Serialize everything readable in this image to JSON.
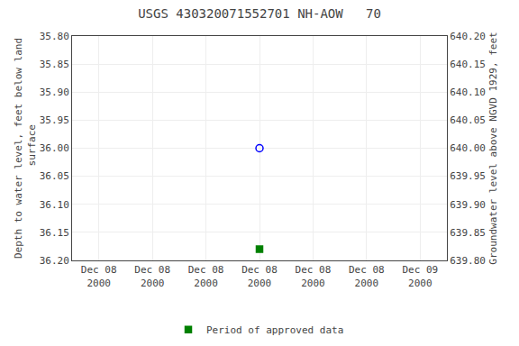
{
  "chart_data": {
    "type": "scatter",
    "title": "USGS 430320071552701 NH-AOW   70",
    "ylabel": "Depth to water level, feet below land\n surface",
    "y2label": "Groundwater level above NGVD 1929, feet",
    "categories": [
      "Dec 08\n2000",
      "Dec 08\n2000",
      "Dec 08\n2000",
      "Dec 08\n2000",
      "Dec 08\n2000",
      "Dec 08\n2000",
      "Dec 09\n2000"
    ],
    "series": [
      {
        "color": "#0000ff",
        "marker": "circle-open",
        "values": [
          null,
          null,
          null,
          36.0,
          null,
          null,
          null
        ]
      },
      {
        "name": "Period of approved data",
        "color": "#008000",
        "marker": "square",
        "values": [
          null,
          null,
          null,
          36.18,
          null,
          null,
          null
        ]
      }
    ],
    "ylim": [
      36.2,
      35.8
    ],
    "yticks": [
      {
        "value": 35.8,
        "label": "35.80"
      },
      35.85,
      {
        "value": 35.9,
        "label": "35.90"
      },
      35.95,
      {
        "value": 36.0,
        "label": "36.00"
      },
      36.05,
      {
        "value": 36.1,
        "label": "36.10"
      },
      36.15,
      {
        "value": 36.2,
        "label": "36.20"
      }
    ],
    "y2lim": [
      639.8,
      640.2
    ],
    "y2ticks": [
      {
        "value": 639.8,
        "label": "639.80"
      },
      639.85,
      {
        "value": 639.9,
        "label": "639.90"
      },
      639.95,
      {
        "value": 640.0,
        "label": "640.00"
      },
      640.05,
      {
        "value": 640.1,
        "label": "640.10"
      },
      640.15,
      {
        "value": 640.2,
        "label": "640.20"
      }
    ],
    "grid": true,
    "legend": "bottom"
  }
}
